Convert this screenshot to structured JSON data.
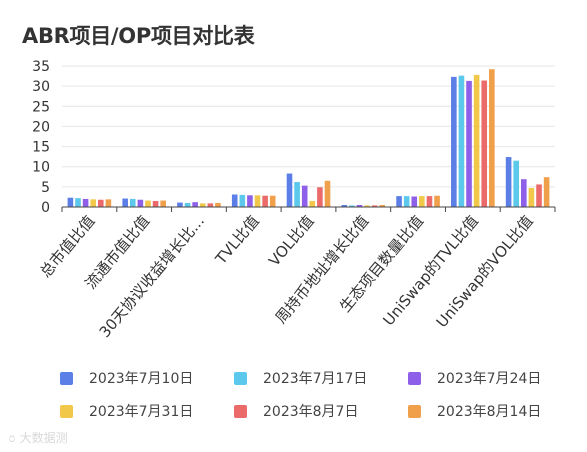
{
  "chart_data": {
    "type": "bar",
    "title": "ABR项目/OP项目对比表",
    "categories": [
      "总市值比值",
      "流通市值比值",
      "30天协议收益增长比...",
      "TVL比值",
      "VOL比值",
      "周持币地址增长比值",
      "生态项目数量比值",
      "UniSwap的TVL比值",
      "UniSwap的VOL比值"
    ],
    "series": [
      {
        "name": "2023年7月10日",
        "color": "#5b7fe6",
        "values": [
          2.3,
          2.1,
          1.1,
          3.1,
          8.3,
          0.5,
          2.7,
          32.3,
          12.4
        ]
      },
      {
        "name": "2023年7月17日",
        "color": "#5bc8ec",
        "values": [
          2.2,
          2.0,
          1.0,
          3.0,
          6.2,
          0.4,
          2.7,
          32.6,
          11.5
        ]
      },
      {
        "name": "2023年7月24日",
        "color": "#8e5fe8",
        "values": [
          2.0,
          1.8,
          1.2,
          2.9,
          5.3,
          0.5,
          2.6,
          31.3,
          6.9
        ]
      },
      {
        "name": "2023年7月31日",
        "color": "#f2c84b",
        "values": [
          1.9,
          1.6,
          0.9,
          2.9,
          1.5,
          0.4,
          2.7,
          32.8,
          4.7
        ]
      },
      {
        "name": "2023年8月7日",
        "color": "#eb6b6b",
        "values": [
          1.8,
          1.5,
          0.9,
          2.8,
          4.9,
          0.4,
          2.7,
          31.4,
          5.6
        ]
      },
      {
        "name": "2023年8月14日",
        "color": "#f0a04b",
        "values": [
          1.9,
          1.6,
          1.0,
          2.8,
          6.5,
          0.5,
          2.8,
          34.2,
          7.4
        ]
      }
    ],
    "ylim": [
      0,
      35
    ],
    "yticks": [
      0,
      5,
      10,
      15,
      20,
      25,
      30,
      35
    ],
    "xlabel": "",
    "ylabel": "",
    "grid": true,
    "legend_position": "bottom"
  },
  "watermark": "大数据测"
}
